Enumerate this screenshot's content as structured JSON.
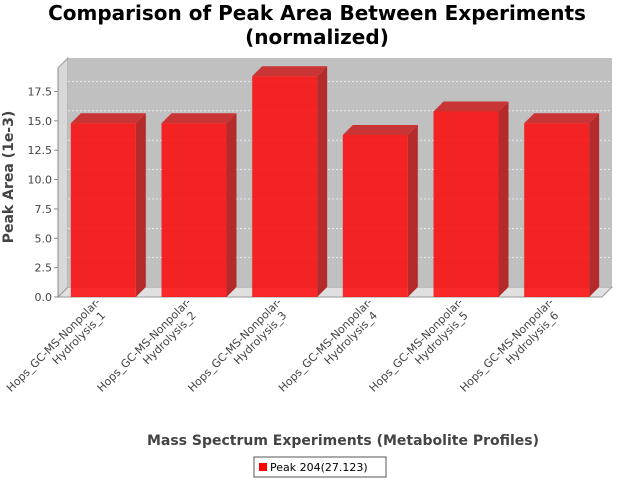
{
  "chart_data": {
    "type": "bar",
    "title": "Comparison of Peak Area Between Experiments",
    "subtitle": "(normalized)",
    "xlabel": "Mass Spectrum Experiments (Metabolite Profiles)",
    "ylabel": "Peak Area (1e-3)",
    "categories": [
      [
        "Hops_GC-MS-Nonpolar-",
        "Hydrolysis_1"
      ],
      [
        "Hops_GC-MS-Nonpolar-",
        "Hydrolysis_2"
      ],
      [
        "Hops_GC-MS-Nonpolar-",
        "Hydrolysis_3"
      ],
      [
        "Hops_GC-MS-Nonpolar-",
        "Hydrolysis_4"
      ],
      [
        "Hops_GC-MS-Nonpolar-",
        "Hydrolysis_5"
      ],
      [
        "Hops_GC-MS-Nonpolar-",
        "Hydrolysis_6"
      ]
    ],
    "series": [
      {
        "name": "Peak 204(27.123)",
        "color": "#ff0000",
        "values": [
          14.8,
          14.8,
          18.8,
          13.8,
          15.8,
          14.8
        ]
      }
    ],
    "ylim": [
      0,
      19.5
    ],
    "yticks": [
      "0.0",
      "2.5",
      "5.0",
      "7.5",
      "10.0",
      "12.5",
      "15.0",
      "17.5"
    ],
    "ytick_values": [
      0,
      2.5,
      5,
      7.5,
      10,
      12.5,
      15,
      17.5
    ],
    "grid": true,
    "legend_position": "bottom",
    "style": "3d"
  }
}
